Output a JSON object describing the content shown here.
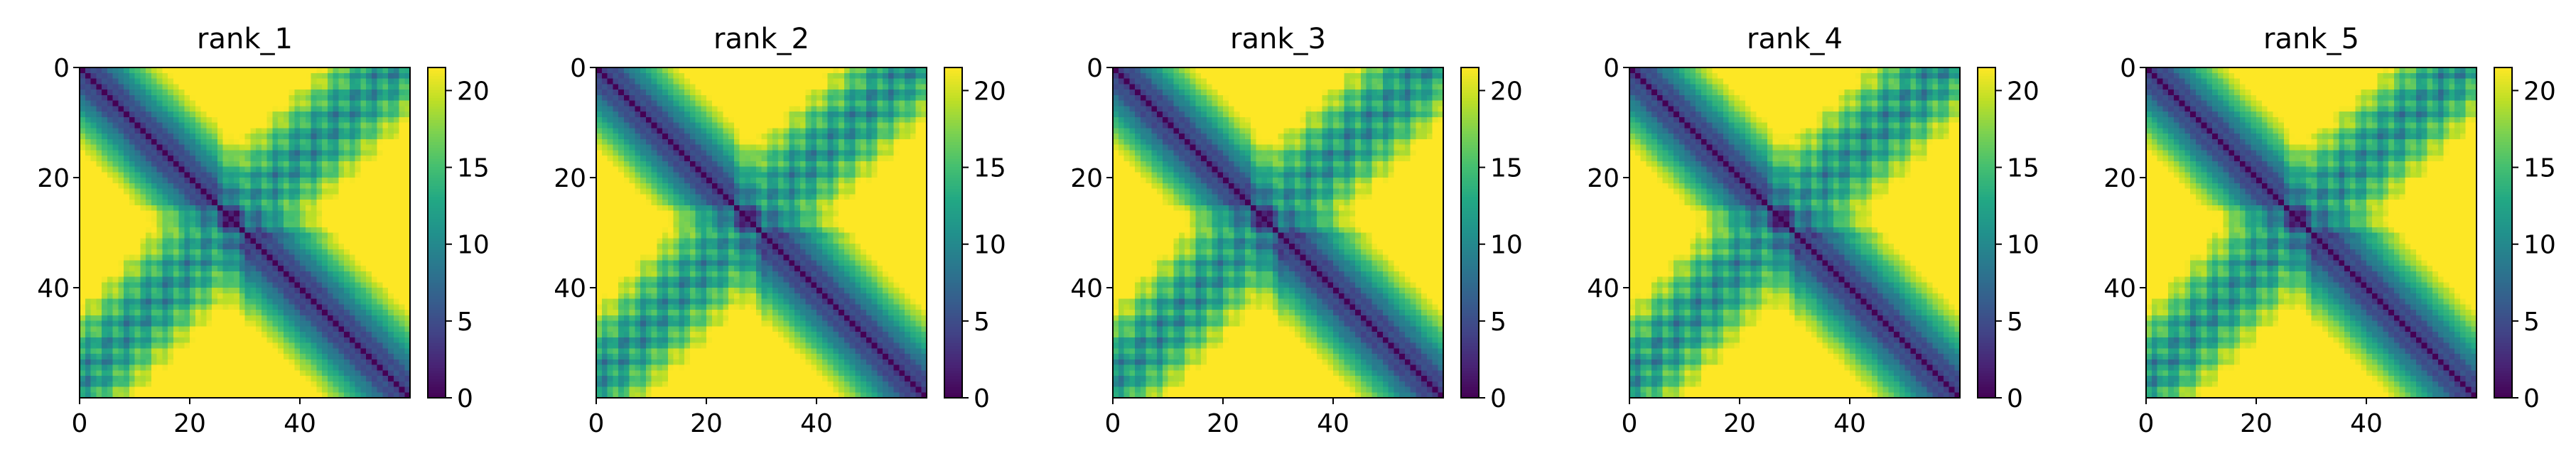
{
  "chart_data": [
    {
      "type": "heatmap",
      "title": "rank_1",
      "size": 60,
      "colormap": "viridis",
      "clim": [
        0,
        21.5
      ],
      "x_ticks": [
        0,
        20,
        40
      ],
      "y_ticks": [
        0,
        20,
        40
      ],
      "colorbar_ticks": [
        0,
        5,
        10,
        15,
        20
      ],
      "seed": 11
    },
    {
      "type": "heatmap",
      "title": "rank_2",
      "size": 60,
      "colormap": "viridis",
      "clim": [
        0,
        21.5
      ],
      "x_ticks": [
        0,
        20,
        40
      ],
      "y_ticks": [
        0,
        20,
        40
      ],
      "colorbar_ticks": [
        0,
        5,
        10,
        15,
        20
      ],
      "seed": 23
    },
    {
      "type": "heatmap",
      "title": "rank_3",
      "size": 60,
      "colormap": "viridis",
      "clim": [
        0,
        21.5
      ],
      "x_ticks": [
        0,
        20,
        40
      ],
      "y_ticks": [
        0,
        20,
        40
      ],
      "colorbar_ticks": [
        0,
        5,
        10,
        15,
        20
      ],
      "seed": 37
    },
    {
      "type": "heatmap",
      "title": "rank_4",
      "size": 60,
      "colormap": "viridis",
      "clim": [
        0,
        21.5
      ],
      "x_ticks": [
        0,
        20,
        40
      ],
      "y_ticks": [
        0,
        20,
        40
      ],
      "colorbar_ticks": [
        0,
        5,
        10,
        15,
        20
      ],
      "seed": 41
    },
    {
      "type": "heatmap",
      "title": "rank_5",
      "size": 60,
      "colormap": "viridis",
      "clim": [
        0,
        21.5
      ],
      "x_ticks": [
        0,
        20,
        40
      ],
      "y_ticks": [
        0,
        20,
        40
      ],
      "colorbar_ticks": [
        0,
        5,
        10,
        15,
        20
      ],
      "seed": 53
    }
  ]
}
